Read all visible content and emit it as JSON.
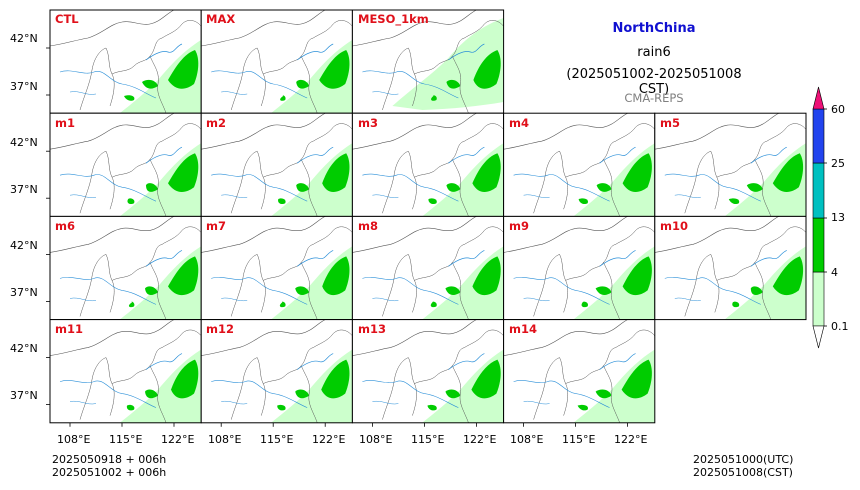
{
  "header": {
    "region": "NorthChina",
    "variable": "rain6",
    "period": "(2025051002-2025051008 CST)",
    "system": "CMA-REPS",
    "region_color": "#1010d0",
    "system_color": "#808080"
  },
  "panels": {
    "row1": [
      "CTL",
      "MAX",
      "MESO_1km"
    ],
    "row2": [
      "m1",
      "m2",
      "m3",
      "m4",
      "m5"
    ],
    "row3": [
      "m6",
      "m7",
      "m8",
      "m9",
      "m10"
    ],
    "row4": [
      "m11",
      "m12",
      "m13",
      "m14"
    ],
    "label_color": "#e0101a"
  },
  "axes": {
    "lat_ticks": [
      "42°N",
      "37°N"
    ],
    "lon_ticks": [
      "108°E",
      "115°E",
      "122°E"
    ]
  },
  "colorbar": {
    "levels": [
      "0.1",
      "4",
      "13",
      "25",
      "60"
    ],
    "colors": [
      "#ccffcc",
      "#00cc00",
      "#00c0c0",
      "#2244ee",
      "#ee1177"
    ]
  },
  "footer": {
    "left_line1": "2025050918  +  006h",
    "left_line2": "2025051002  +  006h",
    "right_line1": "2025051000(UTC)",
    "right_line2": "2025051008(CST)"
  },
  "map_colors": {
    "light_rain": "#ccffcc",
    "moderate_rain": "#00cc00",
    "river": "#2a8fd8",
    "border": "#555555"
  }
}
